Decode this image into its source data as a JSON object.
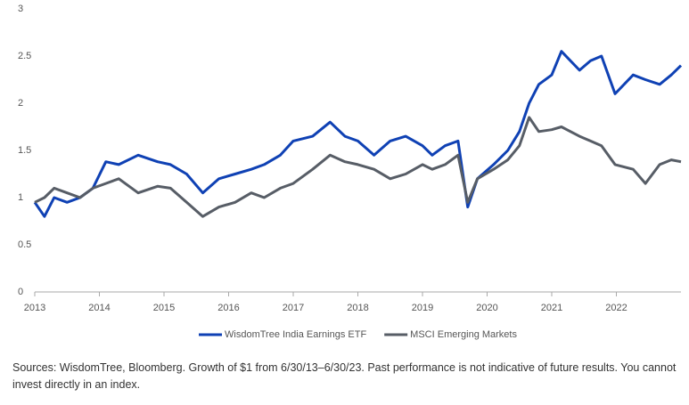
{
  "chart_data": {
    "type": "line",
    "x": [
      2013.0,
      2013.15,
      2013.3,
      2013.5,
      2013.7,
      2013.9,
      2014.1,
      2014.3,
      2014.6,
      2014.9,
      2015.1,
      2015.35,
      2015.6,
      2015.85,
      2016.1,
      2016.35,
      2016.55,
      2016.8,
      2017.0,
      2017.3,
      2017.57,
      2017.8,
      2018.0,
      2018.25,
      2018.5,
      2018.74,
      2019.0,
      2019.15,
      2019.35,
      2019.55,
      2019.7,
      2019.85,
      2020.1,
      2020.32,
      2020.5,
      2020.65,
      2020.8,
      2021.0,
      2021.15,
      2021.43,
      2021.6,
      2021.77,
      2021.98,
      2022.26,
      2022.45,
      2022.67,
      2022.85,
      2023.0
    ],
    "series": [
      {
        "name": "WisdomTree India Earnings ETF",
        "color": "#0f41b4",
        "values": [
          0.95,
          0.8,
          1.0,
          0.95,
          1.0,
          1.1,
          1.38,
          1.35,
          1.45,
          1.38,
          1.35,
          1.25,
          1.05,
          1.2,
          1.25,
          1.3,
          1.35,
          1.45,
          1.6,
          1.65,
          1.8,
          1.65,
          1.6,
          1.45,
          1.6,
          1.65,
          1.55,
          1.45,
          1.55,
          1.6,
          0.9,
          1.2,
          1.35,
          1.5,
          1.7,
          2.0,
          2.2,
          2.3,
          2.55,
          2.35,
          2.45,
          2.5,
          2.1,
          2.3,
          2.25,
          2.2,
          2.3,
          2.4
        ]
      },
      {
        "name": "MSCI Emerging Markets",
        "color": "#575d66",
        "values": [
          0.95,
          1.0,
          1.1,
          1.05,
          1.0,
          1.1,
          1.15,
          1.2,
          1.05,
          1.12,
          1.1,
          0.95,
          0.8,
          0.9,
          0.95,
          1.05,
          1.0,
          1.1,
          1.15,
          1.3,
          1.45,
          1.38,
          1.35,
          1.3,
          1.2,
          1.25,
          1.35,
          1.3,
          1.35,
          1.45,
          0.95,
          1.2,
          1.3,
          1.4,
          1.55,
          1.85,
          1.7,
          1.72,
          1.75,
          1.65,
          1.6,
          1.55,
          1.35,
          1.3,
          1.15,
          1.35,
          1.4,
          1.38
        ]
      }
    ],
    "xlim": [
      2013,
      2023
    ],
    "xticks": [
      2013,
      2014,
      2015,
      2016,
      2017,
      2018,
      2019,
      2020,
      2021,
      2022
    ],
    "ylim": [
      0,
      3
    ],
    "yticks": [
      0,
      0.5,
      1,
      1.5,
      2,
      2.5,
      3
    ],
    "grid": false,
    "legend": "bottom",
    "note": "Sources: WisdomTree, Bloomberg. Growth of $1 from 6/30/13–6/30/23. Past performance is not indicative of future results. You cannot invest directly in an index."
  }
}
